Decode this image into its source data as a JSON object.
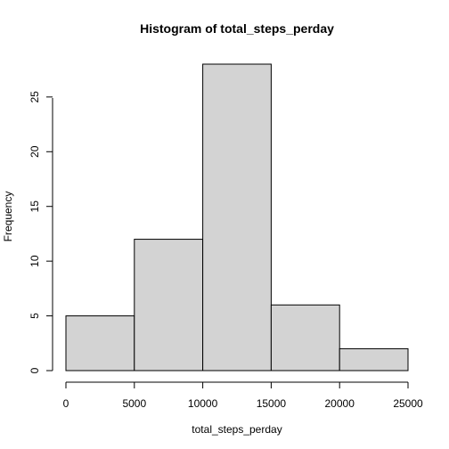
{
  "chart_data": {
    "type": "bar",
    "title": "Histogram of total_steps_perday",
    "xlabel": "total_steps_perday",
    "ylabel": "Frequency",
    "bins": [
      {
        "start": 0,
        "end": 5000,
        "value": 5
      },
      {
        "start": 5000,
        "end": 10000,
        "value": 12
      },
      {
        "start": 10000,
        "end": 15000,
        "value": 28
      },
      {
        "start": 15000,
        "end": 20000,
        "value": 6
      },
      {
        "start": 20000,
        "end": 25000,
        "value": 2
      }
    ],
    "xlim": [
      0,
      25000
    ],
    "ylim": [
      0,
      28
    ],
    "xticks": [
      "0",
      "5000",
      "10000",
      "15000",
      "20000",
      "25000"
    ],
    "yticks": [
      "0",
      "5",
      "10",
      "15",
      "20",
      "25"
    ],
    "colors": {
      "bar_fill": "#d3d3d3",
      "bar_stroke": "#000000"
    },
    "grid": false,
    "legend": "none"
  }
}
